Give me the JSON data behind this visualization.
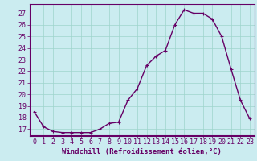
{
  "x": [
    0,
    1,
    2,
    3,
    4,
    5,
    6,
    7,
    8,
    9,
    10,
    11,
    12,
    13,
    14,
    15,
    16,
    17,
    18,
    19,
    20,
    21,
    22,
    23
  ],
  "y": [
    18.5,
    17.2,
    16.8,
    16.7,
    16.7,
    16.7,
    16.7,
    17.0,
    17.5,
    17.6,
    19.5,
    20.5,
    22.5,
    23.3,
    23.8,
    26.0,
    27.3,
    27.0,
    27.0,
    26.5,
    25.0,
    22.2,
    19.5,
    17.9
  ],
  "line_color": "#660066",
  "marker": "+",
  "marker_size": 3,
  "bg_color": "#cbecf0",
  "grid_color": "#9ed4cc",
  "xlabel": "Windchill (Refroidissement éolien,°C)",
  "ylabel_ticks": [
    17,
    18,
    19,
    20,
    21,
    22,
    23,
    24,
    25,
    26,
    27
  ],
  "ylim": [
    16.4,
    27.8
  ],
  "xlim": [
    -0.5,
    23.5
  ],
  "xticks": [
    0,
    1,
    2,
    3,
    4,
    5,
    6,
    7,
    8,
    9,
    10,
    11,
    12,
    13,
    14,
    15,
    16,
    17,
    18,
    19,
    20,
    21,
    22,
    23
  ],
  "xlabel_fontsize": 6.5,
  "tick_fontsize": 6.0,
  "line_width": 1.0,
  "spine_color": "#660066",
  "axis_bg": "#cbecf0"
}
